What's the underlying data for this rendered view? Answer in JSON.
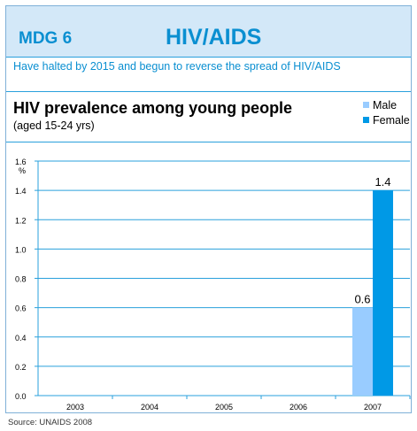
{
  "header": {
    "label": "MDG 6",
    "title": "HIV/AIDS"
  },
  "goal_text": "Have halted by 2015 and begun to reverse the spread of HIV/AIDS",
  "chart_data": {
    "type": "bar",
    "title": "HIV prevalence among young people",
    "subtitle": "(aged 15-24 yrs)",
    "ylabel": "%",
    "xlabel": "",
    "categories": [
      "2003",
      "2004",
      "2005",
      "2006",
      "2007"
    ],
    "series": [
      {
        "name": "Male",
        "color": "#99ccff",
        "values": [
          null,
          null,
          null,
          null,
          0.6
        ]
      },
      {
        "name": "Female",
        "color": "#0099e6",
        "values": [
          null,
          null,
          null,
          null,
          1.4
        ]
      }
    ],
    "data_labels": [
      {
        "series": "Male",
        "category": "2007",
        "text": "0.6"
      },
      {
        "series": "Female",
        "category": "2007",
        "text": "1.4"
      }
    ],
    "ylim": [
      0,
      1.6
    ],
    "yticks": [
      "0.0",
      "0.2",
      "0.4",
      "0.6",
      "0.8",
      "1.0",
      "1.2",
      "1.4",
      "1.6"
    ],
    "legend_position": "top-right",
    "grid": true
  },
  "source": "Source: UNAIDS 2008",
  "colors": {
    "accent": "#0a8fd1",
    "header_bg": "#d3e8f8",
    "border": "#2aa0dc",
    "grid": "#2aa0dc"
  }
}
